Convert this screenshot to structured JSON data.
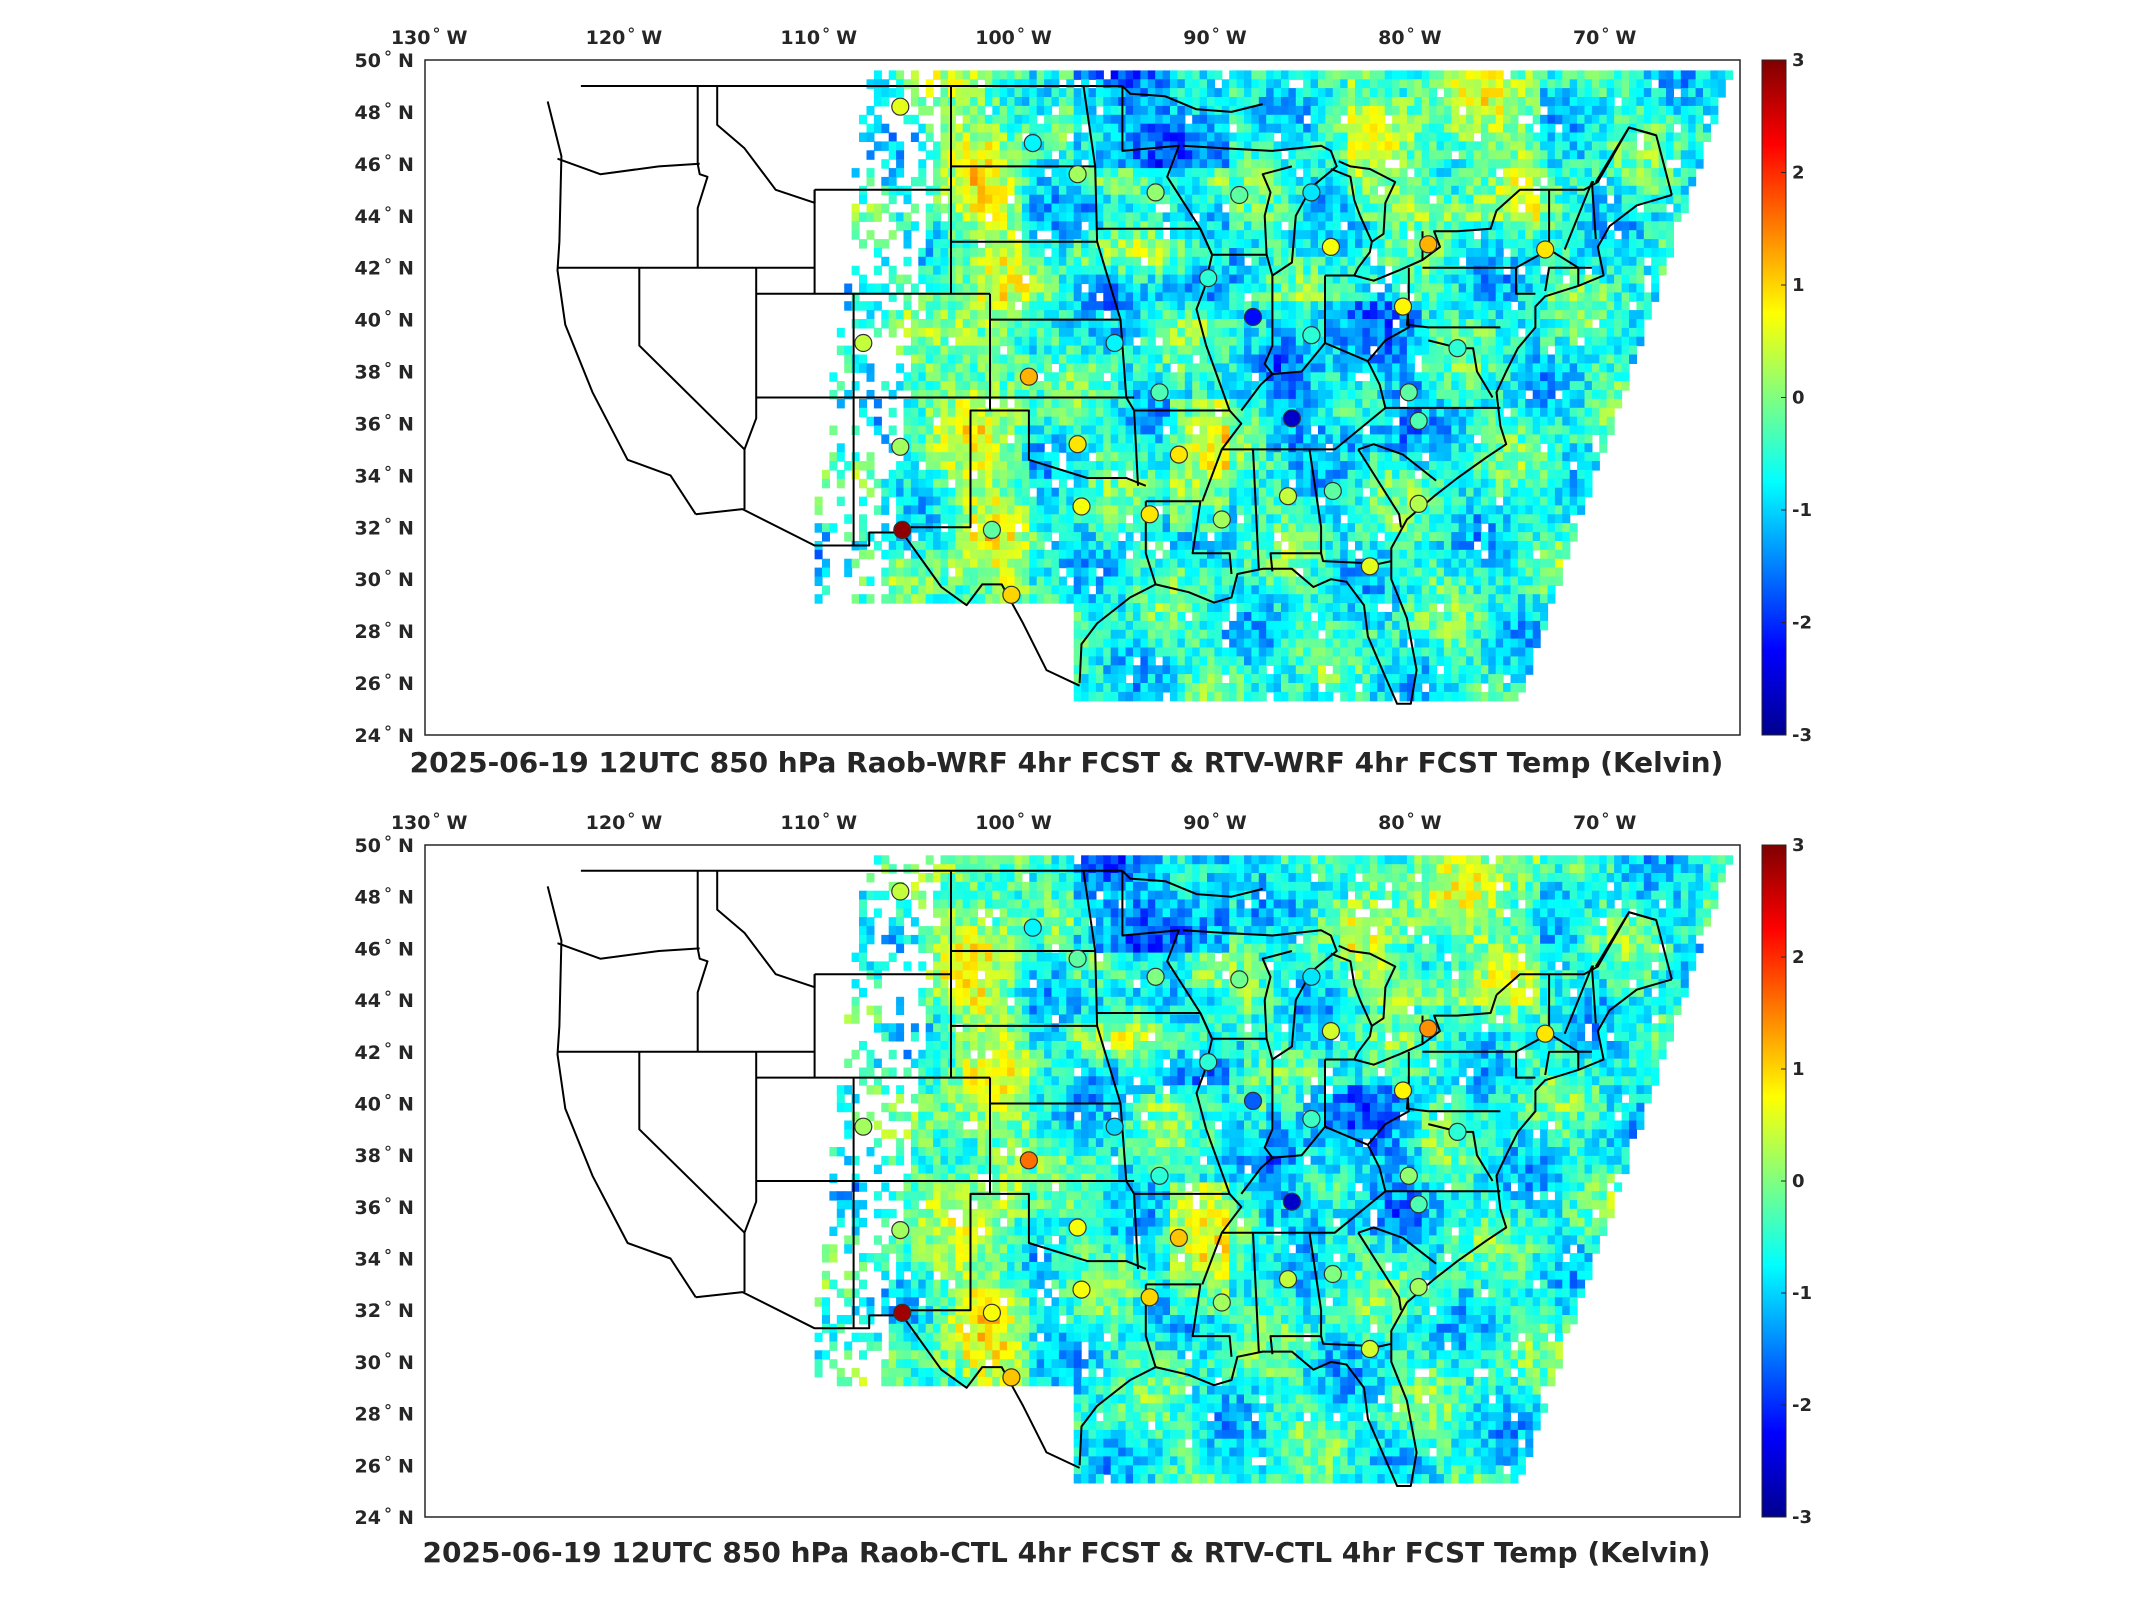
{
  "colorbar": {
    "ticks": [
      "3",
      "2",
      "1",
      "0",
      "-1",
      "-2",
      "-3"
    ],
    "stops": [
      "#7f0000",
      "#ff0000",
      "#ff8000",
      "#ffff00",
      "#80ff80",
      "#00ffff",
      "#0080ff",
      "#0000ff",
      "#00008f"
    ]
  },
  "axes": {
    "lon_labels": [
      "130",
      "120",
      "110",
      "100",
      "90",
      "80",
      "70"
    ],
    "lon_suffix": "W",
    "lat_labels": [
      "50",
      "48",
      "46",
      "44",
      "42",
      "40",
      "38",
      "36",
      "34",
      "32",
      "30",
      "28",
      "26",
      "24"
    ],
    "lat_suffix": "N",
    "lon_range": [
      -131,
      -63.5
    ],
    "lat_range": [
      24,
      50
    ]
  },
  "panels": [
    {
      "title": "2025-06-19 12UTC 850 hPa Raob-WRF 4hr FCST & RTV-WRF 4hr FCST Temp (Kelvin)",
      "stations": [
        {
          "lon": -106.6,
          "lat": 48.2,
          "v": 0.6
        },
        {
          "lon": -99.8,
          "lat": 46.8,
          "v": -0.8
        },
        {
          "lon": -97.5,
          "lat": 45.6,
          "v": 0.2
        },
        {
          "lon": -93.5,
          "lat": 44.9,
          "v": 0.1
        },
        {
          "lon": -85.5,
          "lat": 44.9,
          "v": -0.9
        },
        {
          "lon": -84.5,
          "lat": 42.8,
          "v": 0.7
        },
        {
          "lon": -79.5,
          "lat": 42.9,
          "v": 1.2
        },
        {
          "lon": -73.5,
          "lat": 42.7,
          "v": 0.9
        },
        {
          "lon": -90.8,
          "lat": 41.6,
          "v": -0.5
        },
        {
          "lon": -88.5,
          "lat": 40.1,
          "v": -2.2
        },
        {
          "lon": -85.5,
          "lat": 39.4,
          "v": -0.5
        },
        {
          "lon": -80.8,
          "lat": 40.5,
          "v": 0.8
        },
        {
          "lon": -78.0,
          "lat": 38.9,
          "v": -0.5
        },
        {
          "lon": -108.5,
          "lat": 39.1,
          "v": 0.4
        },
        {
          "lon": -100.0,
          "lat": 37.8,
          "v": 1.2
        },
        {
          "lon": -95.6,
          "lat": 39.1,
          "v": -0.8
        },
        {
          "lon": -93.3,
          "lat": 37.2,
          "v": -0.3
        },
        {
          "lon": -86.5,
          "lat": 36.2,
          "v": -2.6
        },
        {
          "lon": -80.5,
          "lat": 37.2,
          "v": -0.2
        },
        {
          "lon": -80.0,
          "lat": 36.1,
          "v": -0.3
        },
        {
          "lon": -97.5,
          "lat": 35.2,
          "v": 0.9
        },
        {
          "lon": -92.3,
          "lat": 34.8,
          "v": 0.9
        },
        {
          "lon": -106.6,
          "lat": 35.1,
          "v": 0.2
        },
        {
          "lon": -106.5,
          "lat": 31.9,
          "v": 2.9
        },
        {
          "lon": -101.9,
          "lat": 31.9,
          "v": -0.2
        },
        {
          "lon": -97.3,
          "lat": 32.8,
          "v": 0.7
        },
        {
          "lon": -93.8,
          "lat": 32.5,
          "v": 0.9
        },
        {
          "lon": -90.1,
          "lat": 32.3,
          "v": 0.2
        },
        {
          "lon": -86.7,
          "lat": 33.2,
          "v": 0.4
        },
        {
          "lon": -84.4,
          "lat": 33.4,
          "v": -0.2
        },
        {
          "lon": -80.0,
          "lat": 32.9,
          "v": 0.3
        },
        {
          "lon": -100.9,
          "lat": 29.4,
          "v": 1.0
        },
        {
          "lon": -82.5,
          "lat": 30.5,
          "v": 0.6
        },
        {
          "lon": -89.2,
          "lat": 44.8,
          "v": -0.2
        }
      ]
    },
    {
      "title": "2025-06-19 12UTC 850 hPa Raob-CTL 4hr FCST & RTV-CTL 4hr FCST Temp (Kelvin)",
      "stations": [
        {
          "lon": -106.6,
          "lat": 48.2,
          "v": 0.4
        },
        {
          "lon": -99.8,
          "lat": 46.8,
          "v": -0.8
        },
        {
          "lon": -97.5,
          "lat": 45.6,
          "v": -0.2
        },
        {
          "lon": -93.5,
          "lat": 44.9,
          "v": 0.0
        },
        {
          "lon": -85.5,
          "lat": 44.9,
          "v": -0.9
        },
        {
          "lon": -84.5,
          "lat": 42.8,
          "v": 0.5
        },
        {
          "lon": -79.5,
          "lat": 42.9,
          "v": 1.4
        },
        {
          "lon": -73.5,
          "lat": 42.7,
          "v": 0.9
        },
        {
          "lon": -90.8,
          "lat": 41.6,
          "v": -0.5
        },
        {
          "lon": -88.5,
          "lat": 40.1,
          "v": -1.7
        },
        {
          "lon": -85.5,
          "lat": 39.4,
          "v": -0.4
        },
        {
          "lon": -80.8,
          "lat": 40.5,
          "v": 0.8
        },
        {
          "lon": -78.0,
          "lat": 38.9,
          "v": -0.5
        },
        {
          "lon": -108.5,
          "lat": 39.1,
          "v": 0.2
        },
        {
          "lon": -100.0,
          "lat": 37.8,
          "v": 1.6
        },
        {
          "lon": -95.6,
          "lat": 39.1,
          "v": -1.0
        },
        {
          "lon": -93.3,
          "lat": 37.2,
          "v": -0.5
        },
        {
          "lon": -86.5,
          "lat": 36.2,
          "v": -2.6
        },
        {
          "lon": -80.5,
          "lat": 37.2,
          "v": 0.1
        },
        {
          "lon": -80.0,
          "lat": 36.1,
          "v": -0.3
        },
        {
          "lon": -97.5,
          "lat": 35.2,
          "v": 0.7
        },
        {
          "lon": -92.3,
          "lat": 34.8,
          "v": 1.1
        },
        {
          "lon": -106.6,
          "lat": 35.1,
          "v": 0.2
        },
        {
          "lon": -106.5,
          "lat": 31.9,
          "v": 2.8
        },
        {
          "lon": -101.9,
          "lat": 31.9,
          "v": 0.7
        },
        {
          "lon": -97.3,
          "lat": 32.8,
          "v": 0.7
        },
        {
          "lon": -93.8,
          "lat": 32.5,
          "v": 1.0
        },
        {
          "lon": -90.1,
          "lat": 32.3,
          "v": 0.2
        },
        {
          "lon": -86.7,
          "lat": 33.2,
          "v": 0.4
        },
        {
          "lon": -84.4,
          "lat": 33.4,
          "v": 0.0
        },
        {
          "lon": -80.0,
          "lat": 32.9,
          "v": 0.2
        },
        {
          "lon": -100.9,
          "lat": 29.4,
          "v": 1.1
        },
        {
          "lon": -82.5,
          "lat": 30.5,
          "v": 0.5
        },
        {
          "lon": -89.2,
          "lat": 44.8,
          "v": -0.1
        }
      ]
    }
  ]
}
